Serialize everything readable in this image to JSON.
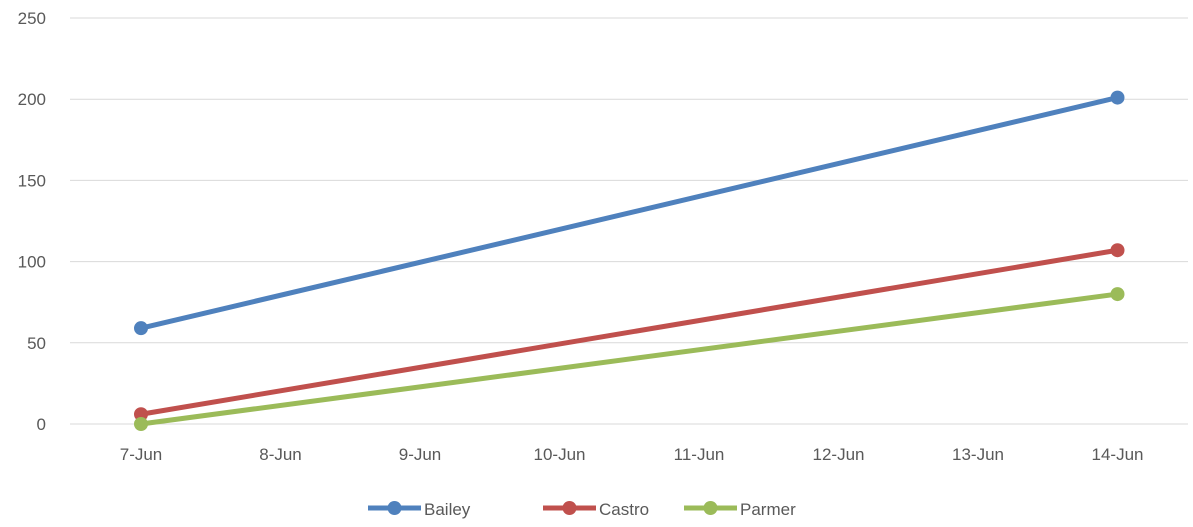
{
  "chart_data": {
    "type": "line",
    "title": "",
    "xlabel": "",
    "ylabel": "",
    "categories": [
      "7-Jun",
      "8-Jun",
      "9-Jun",
      "10-Jun",
      "11-Jun",
      "12-Jun",
      "13-Jun",
      "14-Jun"
    ],
    "x": [
      "7-Jun",
      "14-Jun"
    ],
    "ylim": [
      0,
      250
    ],
    "yticks": [
      "0",
      "50",
      "100",
      "150",
      "200",
      "250"
    ],
    "grid": true,
    "legend_position": "bottom",
    "series": [
      {
        "name": "Bailey",
        "color": "#4f81bd",
        "x": [
          "7-Jun",
          "14-Jun"
        ],
        "values": [
          59,
          201
        ]
      },
      {
        "name": "Castro",
        "color": "#c0504d",
        "x": [
          "7-Jun",
          "14-Jun"
        ],
        "values": [
          6,
          107
        ]
      },
      {
        "name": "Parmer",
        "color": "#9bbb59",
        "x": [
          "7-Jun",
          "14-Jun"
        ],
        "values": [
          0,
          80
        ]
      }
    ]
  }
}
